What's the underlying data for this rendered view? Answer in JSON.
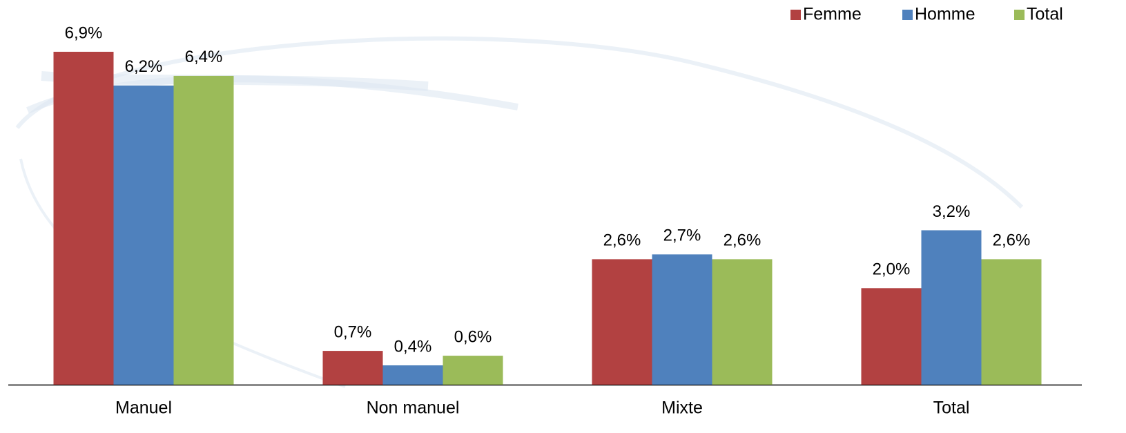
{
  "chart_data": {
    "type": "bar",
    "categories": [
      "Manuel",
      "Non manuel",
      "Mixte",
      "Total"
    ],
    "series": [
      {
        "name": "Femme",
        "color": "#b24141",
        "values": [
          6.9,
          0.7,
          2.6,
          2.0
        ],
        "value_labels": [
          "6,9%",
          "0,7%",
          "2,6%",
          "2,0%"
        ]
      },
      {
        "name": "Homme",
        "color": "#4f81bd",
        "values": [
          6.2,
          0.4,
          2.7,
          3.2
        ],
        "value_labels": [
          "6,2%",
          "0,4%",
          "2,7%",
          "3,2%"
        ]
      },
      {
        "name": "Total",
        "color": "#9bbb59",
        "values": [
          6.4,
          0.6,
          2.6,
          2.6
        ],
        "value_labels": [
          "6,4%",
          "0,6%",
          "2,6%",
          "2,6%"
        ]
      }
    ],
    "ylim": [
      0,
      7.2
    ],
    "legend": "top-right"
  }
}
